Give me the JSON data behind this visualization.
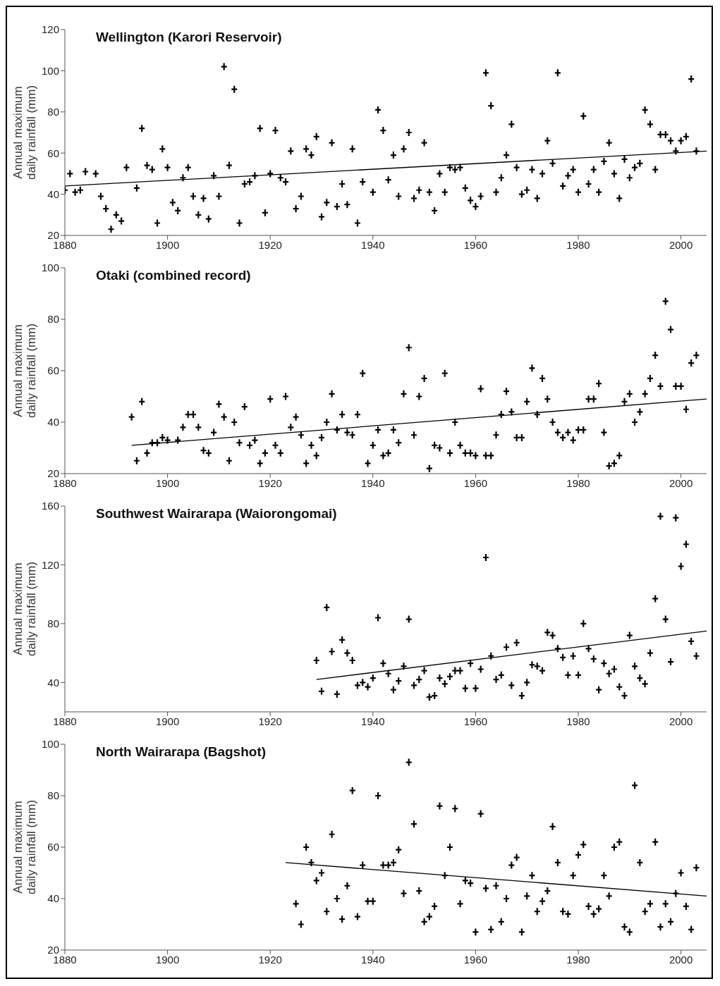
{
  "chart_data": [
    {
      "type": "scatter",
      "title": "Wellington (Karori Reservoir)",
      "ylabel": "Annual maximum daily rainfall (mm)",
      "xlim": [
        1880,
        2005
      ],
      "xticks": [
        1880,
        1900,
        1920,
        1940,
        1960,
        1980,
        2000
      ],
      "ylim": [
        20,
        120
      ],
      "yticks": [
        20,
        40,
        60,
        80,
        100,
        120
      ],
      "grid": false,
      "legend": false,
      "series": [
        {
          "type": "scatter",
          "color": "#000000",
          "marker": "cross",
          "x": [
            1880,
            1881,
            1882,
            1883,
            1884,
            1886,
            1887,
            1888,
            1889,
            1890,
            1891,
            1892,
            1894,
            1895,
            1896,
            1897,
            1898,
            1899,
            1900,
            1901,
            1902,
            1903,
            1904,
            1905,
            1906,
            1907,
            1908,
            1909,
            1910,
            1911,
            1912,
            1913,
            1914,
            1915,
            1916,
            1917,
            1918,
            1919,
            1920,
            1921,
            1922,
            1923,
            1924,
            1925,
            1926,
            1927,
            1928,
            1929,
            1930,
            1931,
            1932,
            1933,
            1934,
            1935,
            1936,
            1937,
            1938,
            1940,
            1941,
            1942,
            1943,
            1944,
            1945,
            1946,
            1947,
            1948,
            1949,
            1950,
            1951,
            1952,
            1953,
            1954,
            1955,
            1956,
            1957,
            1958,
            1959,
            1960,
            1961,
            1962,
            1963,
            1964,
            1965,
            1966,
            1967,
            1968,
            1969,
            1970,
            1971,
            1972,
            1973,
            1974,
            1975,
            1976,
            1977,
            1978,
            1979,
            1980,
            1981,
            1982,
            1983,
            1984,
            1985,
            1986,
            1987,
            1988,
            1989,
            1990,
            1991,
            1992,
            1993,
            1994,
            1995,
            1996,
            1997,
            1998,
            1999,
            2000,
            2001,
            2002,
            2003
          ],
          "values": [
            42,
            50,
            41,
            42,
            51,
            50,
            39,
            33,
            23,
            30,
            27,
            53,
            43,
            72,
            54,
            52,
            26,
            62,
            53,
            36,
            32,
            48,
            53,
            39,
            30,
            38,
            28,
            49,
            39,
            102,
            54,
            91,
            26,
            45,
            46,
            49,
            72,
            31,
            50,
            71,
            48,
            46,
            61,
            33,
            39,
            62,
            59,
            68,
            29,
            36,
            65,
            34,
            45,
            35,
            62,
            26,
            46,
            41,
            81,
            71,
            47,
            59,
            39,
            62,
            70,
            38,
            42,
            65,
            41,
            32,
            50,
            41,
            53,
            52,
            53,
            43,
            37,
            34,
            39,
            99,
            83,
            41,
            48,
            59,
            74,
            53,
            40,
            42,
            52,
            38,
            50,
            66,
            55,
            99,
            44,
            49,
            52,
            41,
            78,
            45,
            52,
            41,
            56,
            65,
            50,
            38,
            57,
            48,
            53,
            55,
            81,
            74,
            52,
            69,
            69,
            66,
            61,
            66,
            68,
            96,
            61
          ]
        },
        {
          "type": "line",
          "color": "#000000",
          "marker": "none",
          "x": [
            1880,
            2005
          ],
          "values": [
            44,
            61
          ]
        }
      ]
    },
    {
      "type": "scatter",
      "title": "Otaki (combined record)",
      "ylabel": "Annual maximum daily rainfall (mm)",
      "xlim": [
        1880,
        2005
      ],
      "xticks": [
        1880,
        1900,
        1920,
        1940,
        1960,
        1980,
        2000
      ],
      "ylim": [
        20,
        100
      ],
      "yticks": [
        20,
        40,
        60,
        80,
        100
      ],
      "grid": false,
      "legend": false,
      "series": [
        {
          "type": "scatter",
          "color": "#000000",
          "marker": "cross",
          "x": [
            1893,
            1894,
            1895,
            1896,
            1897,
            1898,
            1899,
            1900,
            1902,
            1903,
            1904,
            1905,
            1906,
            1907,
            1908,
            1909,
            1910,
            1911,
            1912,
            1913,
            1914,
            1915,
            1916,
            1917,
            1918,
            1919,
            1920,
            1921,
            1922,
            1923,
            1924,
            1925,
            1926,
            1927,
            1928,
            1929,
            1930,
            1931,
            1932,
            1933,
            1934,
            1935,
            1936,
            1937,
            1938,
            1939,
            1940,
            1941,
            1942,
            1943,
            1944,
            1945,
            1946,
            1947,
            1948,
            1949,
            1950,
            1951,
            1952,
            1953,
            1954,
            1955,
            1956,
            1957,
            1958,
            1959,
            1960,
            1961,
            1962,
            1963,
            1964,
            1965,
            1966,
            1967,
            1968,
            1969,
            1970,
            1971,
            1972,
            1973,
            1974,
            1975,
            1976,
            1977,
            1978,
            1979,
            1980,
            1981,
            1982,
            1983,
            1984,
            1985,
            1986,
            1987,
            1988,
            1989,
            1990,
            1991,
            1992,
            1993,
            1994,
            1995,
            1996,
            1997,
            1998,
            1999,
            2000,
            2001,
            2002,
            2003
          ],
          "values": [
            42,
            25,
            48,
            28,
            32,
            32,
            34,
            33,
            33,
            38,
            43,
            43,
            38,
            29,
            28,
            36,
            47,
            42,
            25,
            40,
            32,
            46,
            31,
            33,
            24,
            28,
            49,
            31,
            28,
            50,
            38,
            42,
            35,
            24,
            31,
            27,
            34,
            40,
            51,
            37,
            43,
            36,
            35,
            43,
            59,
            24,
            31,
            37,
            27,
            28,
            37,
            32,
            51,
            69,
            35,
            50,
            57,
            22,
            31,
            30,
            59,
            28,
            40,
            31,
            28,
            28,
            27,
            53,
            27,
            27,
            35,
            43,
            52,
            44,
            34,
            34,
            48,
            61,
            43,
            57,
            49,
            40,
            36,
            34,
            36,
            33,
            37,
            37,
            49,
            49,
            55,
            36,
            23,
            24,
            27,
            48,
            51,
            40,
            44,
            51,
            57,
            66,
            54,
            87,
            76,
            54,
            54,
            45,
            63,
            66
          ]
        },
        {
          "type": "line",
          "color": "#000000",
          "marker": "none",
          "x": [
            1893,
            2005
          ],
          "values": [
            31,
            49
          ]
        }
      ]
    },
    {
      "type": "scatter",
      "title": "Southwest Wairarapa (Waiorongomai)",
      "ylabel": "Annual maximum daily rainfall (mm)",
      "xlim": [
        1880,
        2005
      ],
      "xticks": [
        1880,
        1900,
        1920,
        1940,
        1960,
        1980,
        2000
      ],
      "ylim": [
        20,
        160
      ],
      "yticks": [
        40,
        80,
        120,
        160
      ],
      "grid": false,
      "legend": false,
      "series": [
        {
          "type": "scatter",
          "color": "#000000",
          "marker": "cross",
          "x": [
            1929,
            1930,
            1931,
            1932,
            1933,
            1934,
            1935,
            1936,
            1937,
            1938,
            1939,
            1940,
            1941,
            1942,
            1943,
            1944,
            1945,
            1946,
            1947,
            1948,
            1949,
            1950,
            1951,
            1952,
            1953,
            1954,
            1955,
            1956,
            1957,
            1958,
            1959,
            1960,
            1961,
            1962,
            1963,
            1964,
            1965,
            1966,
            1967,
            1968,
            1969,
            1970,
            1971,
            1972,
            1973,
            1974,
            1975,
            1976,
            1977,
            1978,
            1979,
            1980,
            1981,
            1982,
            1983,
            1984,
            1985,
            1986,
            1987,
            1988,
            1989,
            1990,
            1991,
            1992,
            1993,
            1994,
            1995,
            1996,
            1997,
            1998,
            1999,
            2000,
            2001,
            2002,
            2003
          ],
          "values": [
            55,
            34,
            91,
            61,
            32,
            69,
            60,
            55,
            38,
            40,
            37,
            43,
            84,
            53,
            46,
            35,
            41,
            51,
            83,
            38,
            42,
            48,
            30,
            31,
            43,
            39,
            44,
            48,
            48,
            36,
            53,
            36,
            49,
            125,
            58,
            42,
            45,
            64,
            38,
            67,
            31,
            40,
            52,
            51,
            48,
            74,
            72,
            63,
            57,
            45,
            58,
            45,
            80,
            63,
            56,
            35,
            53,
            46,
            49,
            37,
            31,
            72,
            51,
            43,
            39,
            60,
            97,
            153,
            83,
            54,
            152,
            119,
            134,
            68,
            58
          ]
        },
        {
          "type": "line",
          "color": "#000000",
          "marker": "none",
          "x": [
            1929,
            2005
          ],
          "values": [
            42,
            75
          ]
        }
      ]
    },
    {
      "type": "scatter",
      "title": "North Wairarapa (Bagshot)",
      "ylabel": "Annual maximum daily rainfall (mm)",
      "xlim": [
        1880,
        2005
      ],
      "xticks": [
        1880,
        1900,
        1920,
        1940,
        1960,
        1980,
        2000
      ],
      "ylim": [
        20,
        100
      ],
      "yticks": [
        20,
        40,
        60,
        80,
        100
      ],
      "grid": false,
      "legend": false,
      "series": [
        {
          "type": "scatter",
          "color": "#000000",
          "marker": "cross",
          "x": [
            1925,
            1926,
            1927,
            1928,
            1929,
            1930,
            1931,
            1932,
            1933,
            1934,
            1935,
            1936,
            1937,
            1938,
            1939,
            1940,
            1941,
            1942,
            1943,
            1944,
            1945,
            1946,
            1947,
            1948,
            1949,
            1950,
            1951,
            1952,
            1953,
            1954,
            1955,
            1956,
            1957,
            1958,
            1959,
            1960,
            1961,
            1962,
            1963,
            1964,
            1965,
            1966,
            1967,
            1968,
            1969,
            1970,
            1971,
            1972,
            1973,
            1974,
            1975,
            1976,
            1977,
            1978,
            1979,
            1980,
            1981,
            1982,
            1983,
            1984,
            1985,
            1986,
            1987,
            1988,
            1989,
            1990,
            1991,
            1992,
            1993,
            1994,
            1995,
            1996,
            1997,
            1998,
            1999,
            2000,
            2001,
            2002,
            2003
          ],
          "values": [
            38,
            30,
            60,
            54,
            47,
            50,
            35,
            65,
            40,
            32,
            45,
            82,
            33,
            53,
            39,
            39,
            80,
            53,
            53,
            54,
            59,
            42,
            93,
            69,
            43,
            31,
            33,
            37,
            76,
            49,
            60,
            75,
            38,
            47,
            46,
            27,
            73,
            44,
            28,
            45,
            31,
            40,
            53,
            56,
            27,
            41,
            49,
            35,
            39,
            43,
            68,
            54,
            35,
            34,
            49,
            57,
            61,
            37,
            34,
            36,
            49,
            41,
            60,
            62,
            29,
            27,
            84,
            54,
            35,
            38,
            62,
            29,
            38,
            31,
            42,
            50,
            37,
            28,
            52
          ]
        },
        {
          "type": "line",
          "color": "#000000",
          "marker": "none",
          "x": [
            1923,
            2005
          ],
          "values": [
            54,
            41
          ]
        }
      ]
    }
  ]
}
